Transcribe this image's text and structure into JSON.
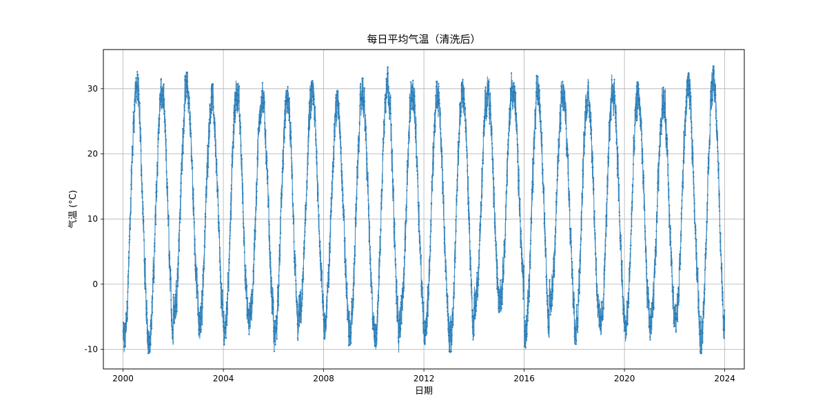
{
  "chart_data": {
    "type": "line",
    "title": "每日平均气温（清洗后）",
    "xlabel": "日期",
    "ylabel": "气温 (°C)",
    "xlim": [
      "1999-03-20",
      "2024-10-12"
    ],
    "ylim": [
      -13,
      36
    ],
    "xticks": [
      "2000",
      "2004",
      "2008",
      "2012",
      "2016",
      "2020",
      "2024"
    ],
    "yticks": [
      -10,
      0,
      10,
      20,
      30
    ],
    "grid": true,
    "legend": "none",
    "line_color": "#1f77b4",
    "date_range": [
      "2000-01-01",
      "2023-12-31"
    ],
    "series": [
      {
        "name": "",
        "annual_cycle": [
          {
            "year": 2000,
            "min": -10.8,
            "max": 32.6
          },
          {
            "year": 2001,
            "min": -10.6,
            "max": 31.5
          },
          {
            "year": 2002,
            "min": -6.0,
            "max": 32.5
          },
          {
            "year": 2003,
            "min": -8.7,
            "max": 30.7
          },
          {
            "year": 2004,
            "min": -9.3,
            "max": 31.7
          },
          {
            "year": 2005,
            "min": -7.7,
            "max": 30.9
          },
          {
            "year": 2006,
            "min": -10.3,
            "max": 30.3
          },
          {
            "year": 2007,
            "min": -7.0,
            "max": 31.2
          },
          {
            "year": 2008,
            "min": -8.4,
            "max": 29.8
          },
          {
            "year": 2009,
            "min": -9.6,
            "max": 31.6
          },
          {
            "year": 2010,
            "min": -10.8,
            "max": 33.4
          },
          {
            "year": 2011,
            "min": -8.2,
            "max": 31.5
          },
          {
            "year": 2012,
            "min": -9.5,
            "max": 31.1
          },
          {
            "year": 2013,
            "min": -10.6,
            "max": 31.8
          },
          {
            "year": 2014,
            "min": -5.3,
            "max": 32.0
          },
          {
            "year": 2015,
            "min": -4.2,
            "max": 32.5
          },
          {
            "year": 2016,
            "min": -10.0,
            "max": 32.0
          },
          {
            "year": 2017,
            "min": -4.7,
            "max": 31.1
          },
          {
            "year": 2018,
            "min": -9.2,
            "max": 31.5
          },
          {
            "year": 2019,
            "min": -8.4,
            "max": 32.2
          },
          {
            "year": 2020,
            "min": -8.8,
            "max": 31.1
          },
          {
            "year": 2021,
            "min": -8.6,
            "max": 30.2
          },
          {
            "year": 2022,
            "min": -7.8,
            "max": 32.4
          },
          {
            "year": 2023,
            "min": -10.6,
            "max": 33.5
          }
        ]
      }
    ]
  }
}
